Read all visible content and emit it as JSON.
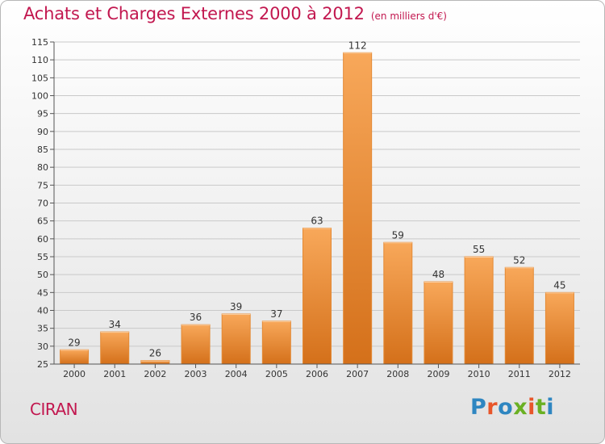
{
  "title": "Achats et Charges Externes 2000 à 2012",
  "unit": "(en milliers d'€)",
  "commune": "CIRAN",
  "logo": {
    "text": "Proxiti",
    "colors": [
      "#2e86c1",
      "#e8562a",
      "#2e86c1",
      "#6ab023",
      "#e8562a",
      "#6ab023",
      "#2e86c1"
    ]
  },
  "colors": {
    "title": "#c2174f",
    "bar_light": "#f8a85a",
    "bar_dark": "#d4701a",
    "grid": "#c9c9c9",
    "axis": "#555555"
  },
  "chart_data": {
    "type": "bar",
    "categories": [
      "2000",
      "2001",
      "2002",
      "2003",
      "2004",
      "2005",
      "2006",
      "2007",
      "2008",
      "2009",
      "2010",
      "2011",
      "2012"
    ],
    "values": [
      29,
      34,
      26,
      36,
      39,
      37,
      63,
      112,
      59,
      48,
      55,
      52,
      45
    ],
    "ylim": [
      25,
      115
    ],
    "yticks": [
      25,
      30,
      35,
      40,
      45,
      50,
      55,
      60,
      65,
      70,
      75,
      80,
      85,
      90,
      95,
      100,
      105,
      110,
      115
    ],
    "grid": true,
    "data_labels": true
  }
}
